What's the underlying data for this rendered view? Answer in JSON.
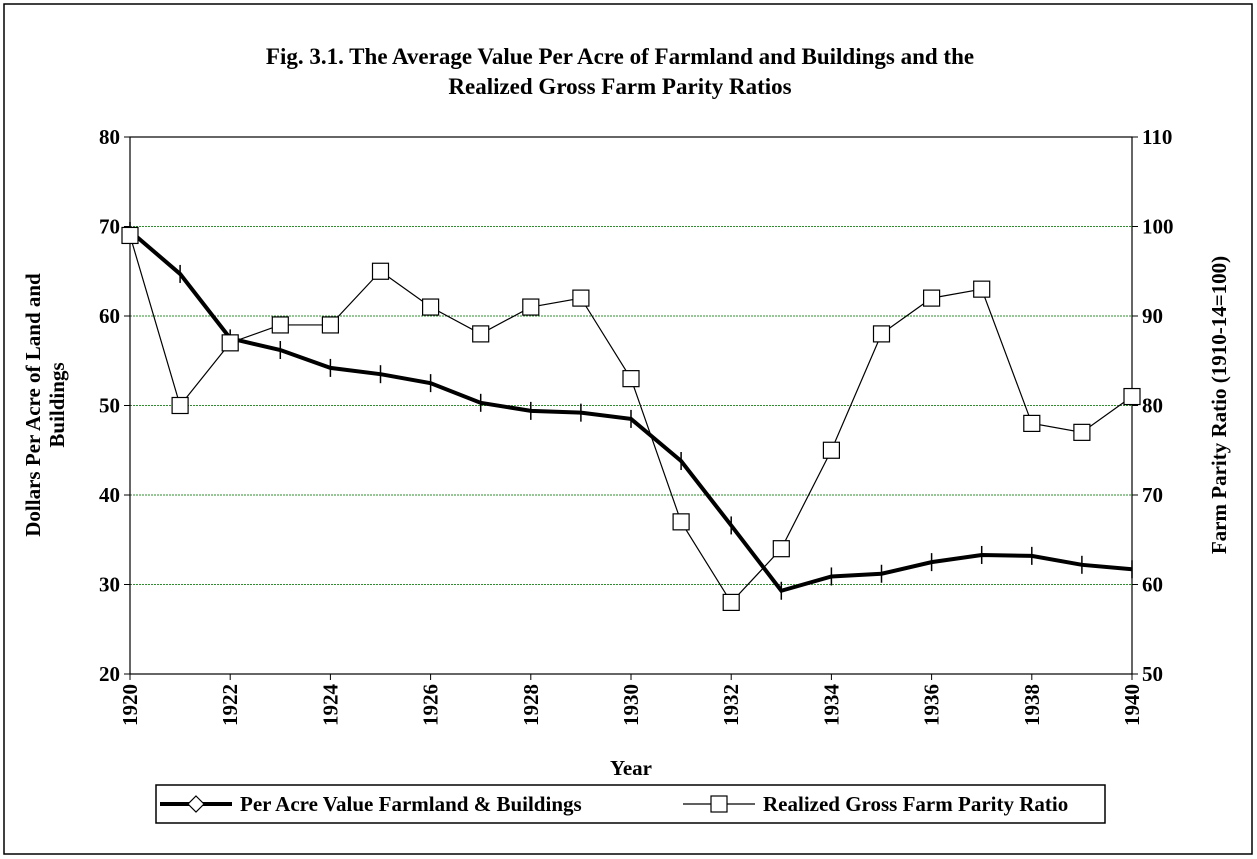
{
  "chart_data": {
    "type": "line",
    "title": "Fig. 3.1. The Average Value Per Acre of Farmland and Buildings and the Realized Gross Farm Parity Ratios",
    "x_label": "Year",
    "y_label": "Dollars Per Acre of Land and Buildings",
    "y2_label": "Farm Parity Ratio (1910-14=100)",
    "x": [
      1920,
      1921,
      1922,
      1923,
      1924,
      1925,
      1926,
      1927,
      1928,
      1929,
      1930,
      1931,
      1932,
      1933,
      1934,
      1935,
      1936,
      1937,
      1938,
      1939,
      1940
    ],
    "xlim": [
      1920,
      1940
    ],
    "xticks": [
      1920,
      1922,
      1924,
      1926,
      1928,
      1930,
      1932,
      1934,
      1936,
      1938,
      1940
    ],
    "ylim": [
      20,
      80
    ],
    "yticks": [
      20,
      30,
      40,
      50,
      60,
      70,
      80
    ],
    "y2lim": [
      50,
      110
    ],
    "y2ticks": [
      50,
      60,
      70,
      80,
      90,
      100,
      110
    ],
    "grid": true,
    "legend": "bottom",
    "series": [
      {
        "name": "Per Acre Value Farmland & Buildings",
        "color": "#000000",
        "marker": "diamond",
        "values": [
          69.5,
          64.7,
          57.5,
          56.2,
          54.2,
          53.5,
          52.5,
          50.3,
          49.4,
          49.2,
          48.5,
          43.8,
          36.6,
          29.3,
          30.9,
          31.2,
          32.5,
          33.3,
          33.2,
          32.2,
          31.7
        ]
      },
      {
        "name": "Realized Gross Farm Parity Ratio",
        "color": "#000000",
        "marker": "square",
        "axis": "y2",
        "values": [
          99,
          80,
          87,
          89,
          89,
          95,
          91,
          88,
          91,
          92,
          83,
          67,
          58,
          64,
          75,
          88,
          92,
          93,
          78,
          77,
          81
        ]
      }
    ]
  }
}
